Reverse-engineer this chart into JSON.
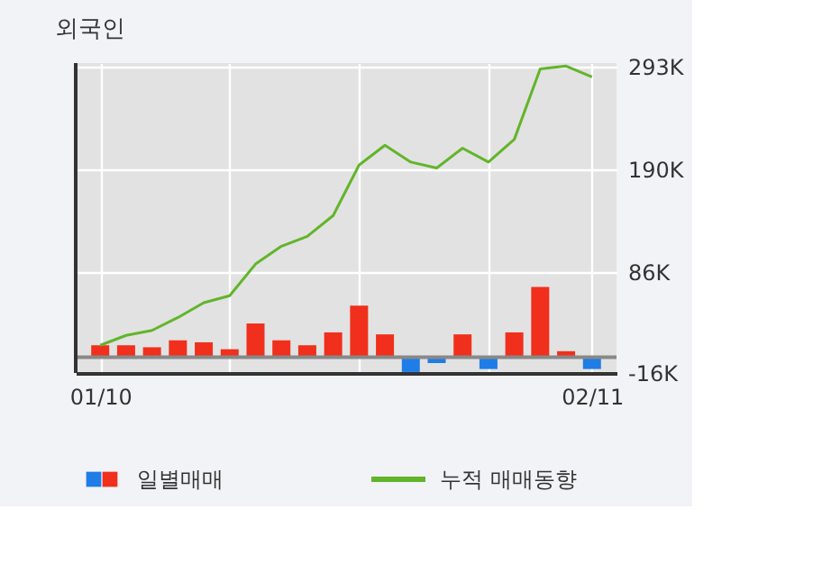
{
  "chart_data": {
    "type": "bar",
    "title": "외국인",
    "categories": [
      "01/10",
      null,
      null,
      null,
      null,
      null,
      null,
      null,
      null,
      null,
      null,
      null,
      null,
      null,
      null,
      null,
      null,
      null,
      null,
      "02/11"
    ],
    "series": [
      {
        "name": "일별매매",
        "type": "bar",
        "values": [
          12,
          12,
          10,
          17,
          15,
          8,
          34,
          17,
          12,
          25,
          52,
          23,
          -15,
          -6,
          23,
          -12,
          25,
          71,
          6,
          -12
        ],
        "colors": [
          "#f0301c",
          "#f0301c",
          "#f0301c",
          "#f0301c",
          "#f0301c",
          "#f0301c",
          "#f0301c",
          "#f0301c",
          "#f0301c",
          "#f0301c",
          "#f0301c",
          "#f0301c",
          "#1e7de6",
          "#1e7de6",
          "#f0301c",
          "#1e7de6",
          "#f0301c",
          "#f0301c",
          "#f0301c",
          "#1e7de6"
        ]
      },
      {
        "name": "누적 매매동향",
        "type": "line",
        "color": "#62b52a",
        "values": [
          12,
          22,
          27,
          40,
          55,
          62,
          94,
          112,
          122,
          143,
          194,
          214,
          197,
          191,
          211,
          197,
          220,
          291,
          294,
          283
        ]
      }
    ],
    "ylim": [
      -16,
      297
    ],
    "yticks": [
      {
        "value": -16,
        "label": "-16K"
      },
      {
        "value": 86,
        "label": "86K"
      },
      {
        "value": 190,
        "label": "190K"
      },
      {
        "value": 293,
        "label": "293K"
      }
    ],
    "ref_lines": [
      {
        "axis": "y",
        "value": 0,
        "color": "#888888"
      }
    ],
    "grid": true,
    "legend": "bottom"
  }
}
